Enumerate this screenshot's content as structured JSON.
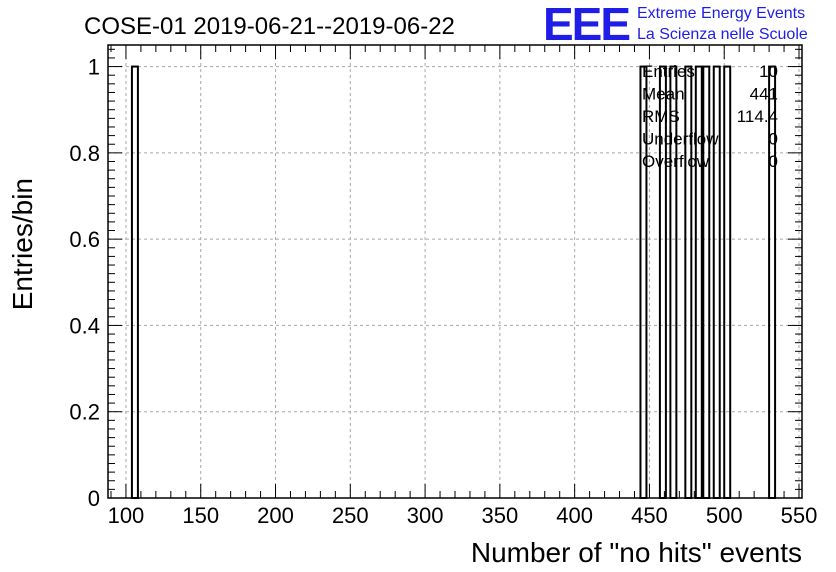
{
  "chart_data": {
    "type": "bar",
    "title": "COSE-01 2019-06-21--2019-06-22",
    "xlabel": "Number of \"no hits\" events",
    "ylabel": "Entries/bin",
    "xlim": [
      88,
      552
    ],
    "ylim": [
      0,
      1.05
    ],
    "x_ticks": [
      100,
      150,
      200,
      250,
      300,
      350,
      400,
      450,
      500,
      550
    ],
    "y_ticks": [
      0,
      0.2,
      0.4,
      0.6,
      0.8,
      1
    ],
    "y_tick_labels": [
      "0",
      "0.2",
      "0.4",
      "0.6",
      "0.8",
      "1"
    ],
    "grid": true,
    "bin_width": 4,
    "bins": [
      {
        "x": 104,
        "value": 1
      },
      {
        "x": 444,
        "value": 1
      },
      {
        "x": 457,
        "value": 1
      },
      {
        "x": 464,
        "value": 1
      },
      {
        "x": 474,
        "value": 1
      },
      {
        "x": 481,
        "value": 1
      },
      {
        "x": 486,
        "value": 1
      },
      {
        "x": 493,
        "value": 1
      },
      {
        "x": 500,
        "value": 1
      },
      {
        "x": 530,
        "value": 1
      }
    ]
  },
  "stats_box": {
    "rows": [
      {
        "label": "Entries",
        "value": "10"
      },
      {
        "label": "Mean",
        "value": "441"
      },
      {
        "label": "RMS",
        "value": "114.4"
      },
      {
        "label": "Underflow",
        "value": "0"
      },
      {
        "label": "Overflow",
        "value": "0"
      }
    ]
  },
  "logo": {
    "mark": "EEE",
    "line1": "Extreme Energy Events",
    "line2": "La Scienza nelle Scuole"
  }
}
